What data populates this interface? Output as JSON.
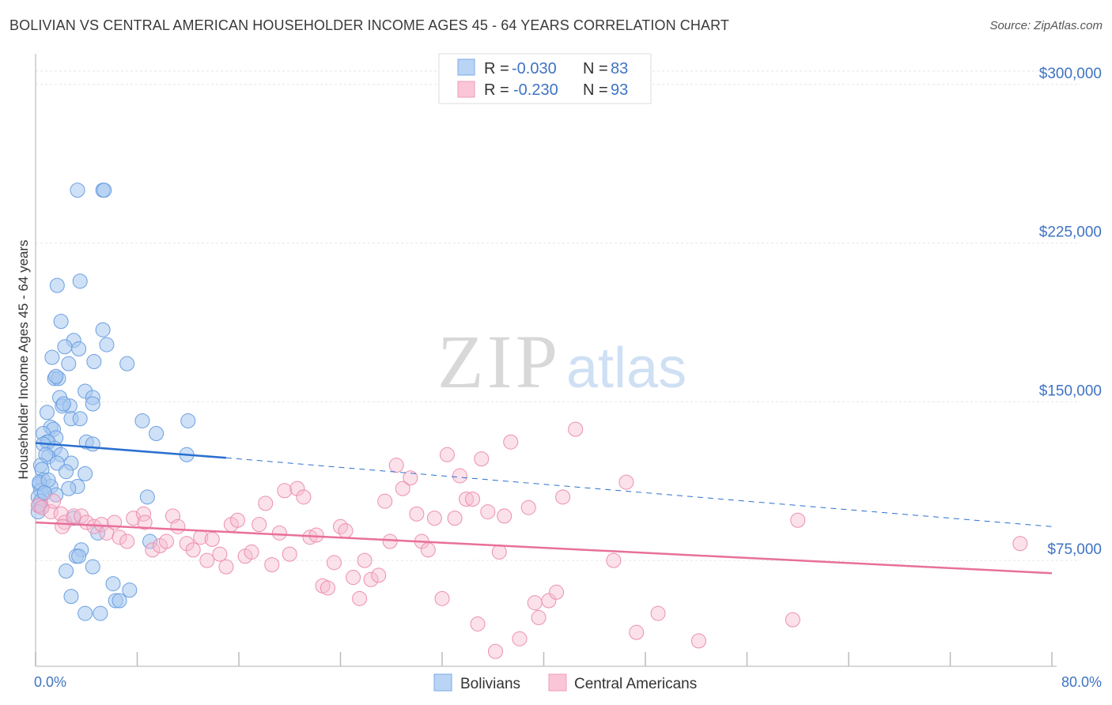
{
  "title": "BOLIVIAN VS CENTRAL AMERICAN HOUSEHOLDER INCOME AGES 45 - 64 YEARS CORRELATION CHART",
  "source": "Source: ZipAtlas.com",
  "watermark": {
    "zip": "ZIP",
    "atlas": "atlas"
  },
  "legend": {
    "r_label": "R =",
    "n_label": "N =",
    "rows": [
      {
        "r": "-0.030",
        "n": "83"
      },
      {
        "r": "-0.230",
        "n": "93"
      }
    ]
  },
  "bottom_legend": [
    "Bolivians",
    "Central Americans"
  ],
  "chart_data": {
    "type": "scatter",
    "title": "BOLIVIAN VS CENTRAL AMERICAN HOUSEHOLDER INCOME AGES 45 - 64 YEARS CORRELATION CHART",
    "xlabel": "",
    "ylabel": "Householder Income Ages 45 - 64 years",
    "xlim": [
      0,
      80
    ],
    "ylim": [
      25000,
      310000
    ],
    "x_tick_labels": [
      "0.0%",
      "80.0%"
    ],
    "y_ticks": [
      75000,
      150000,
      225000,
      300000
    ],
    "y_tick_labels": [
      "$75,000",
      "$150,000",
      "$225,000",
      "$300,000"
    ],
    "grid": true,
    "colors": {
      "bolivians": "#a8c8f0",
      "bolivians_edge": "#6a9fe0",
      "bolivians_line": "#2a6fd0",
      "central": "#f7bcd0",
      "central_edge": "#ec8fb0",
      "central_line": "#e8709a"
    },
    "series": [
      {
        "name": "Bolivians",
        "trend": {
          "x": [
            0,
            15
          ],
          "y": [
            130500,
            123500
          ],
          "dashed_x": [
            15,
            80
          ],
          "dashed_y": [
            123500,
            91000
          ]
        },
        "points": [
          [
            3.3,
            250000
          ],
          [
            5.3,
            250000
          ],
          [
            5.4,
            250000
          ],
          [
            1.7,
            205000
          ],
          [
            3.5,
            207000
          ],
          [
            2.0,
            188000
          ],
          [
            5.3,
            184000
          ],
          [
            3.0,
            179000
          ],
          [
            2.3,
            176000
          ],
          [
            3.4,
            175000
          ],
          [
            5.6,
            177000
          ],
          [
            1.3,
            171000
          ],
          [
            4.6,
            169000
          ],
          [
            2.6,
            168000
          ],
          [
            7.2,
            168000
          ],
          [
            1.5,
            161000
          ],
          [
            1.8,
            161000
          ],
          [
            3.9,
            155000
          ],
          [
            1.9,
            152000
          ],
          [
            4.5,
            152000
          ],
          [
            4.5,
            149000
          ],
          [
            2.1,
            148000
          ],
          [
            2.7,
            148000
          ],
          [
            0.9,
            145000
          ],
          [
            2.8,
            142000
          ],
          [
            3.5,
            142000
          ],
          [
            8.4,
            141000
          ],
          [
            12.0,
            141000
          ],
          [
            1.2,
            138000
          ],
          [
            1.4,
            137000
          ],
          [
            9.5,
            135000
          ],
          [
            0.6,
            135000
          ],
          [
            1.6,
            133000
          ],
          [
            0.9,
            131000
          ],
          [
            1.0,
            131000
          ],
          [
            0.6,
            130000
          ],
          [
            4.0,
            131000
          ],
          [
            4.5,
            130000
          ],
          [
            1.5,
            128000
          ],
          [
            2.0,
            125000
          ],
          [
            1.0,
            124000
          ],
          [
            0.8,
            125000
          ],
          [
            11.9,
            125000
          ],
          [
            0.4,
            120000
          ],
          [
            2.8,
            121000
          ],
          [
            0.5,
            118000
          ],
          [
            1.7,
            121000
          ],
          [
            2.4,
            117000
          ],
          [
            3.9,
            116000
          ],
          [
            0.6,
            113000
          ],
          [
            0.3,
            111000
          ],
          [
            1.2,
            110000
          ],
          [
            3.3,
            110000
          ],
          [
            2.6,
            109000
          ],
          [
            0.4,
            108000
          ],
          [
            0.7,
            107000
          ],
          [
            1.6,
            106000
          ],
          [
            0.2,
            105000
          ],
          [
            0.4,
            103000
          ],
          [
            8.8,
            105000
          ],
          [
            0.3,
            101000
          ],
          [
            0.5,
            100000
          ],
          [
            0.2,
            98000
          ],
          [
            3.0,
            95000
          ],
          [
            4.9,
            88000
          ],
          [
            9.0,
            84000
          ],
          [
            3.6,
            80000
          ],
          [
            3.2,
            77000
          ],
          [
            3.4,
            77000
          ],
          [
            4.5,
            72000
          ],
          [
            2.4,
            70000
          ],
          [
            6.1,
            64000
          ],
          [
            7.4,
            61000
          ],
          [
            2.8,
            58000
          ],
          [
            6.3,
            56000
          ],
          [
            6.6,
            56000
          ],
          [
            3.9,
            50000
          ],
          [
            5.1,
            50000
          ],
          [
            0.3,
            112000
          ],
          [
            1.0,
            113000
          ],
          [
            2.2,
            149000
          ],
          [
            1.6,
            162000
          ],
          [
            0.7,
            107000
          ]
        ]
      },
      {
        "name": "Central Americans",
        "trend": {
          "x": [
            0,
            80
          ],
          "y": [
            93000,
            69000
          ]
        },
        "points": [
          [
            0.2,
            101000
          ],
          [
            0.5,
            100000
          ],
          [
            1.2,
            98000
          ],
          [
            1.4,
            103000
          ],
          [
            2.0,
            97000
          ],
          [
            2.3,
            93000
          ],
          [
            2.1,
            91000
          ],
          [
            3.0,
            96000
          ],
          [
            3.6,
            96000
          ],
          [
            4.0,
            93000
          ],
          [
            4.6,
            91000
          ],
          [
            5.2,
            92000
          ],
          [
            5.6,
            88000
          ],
          [
            6.2,
            93000
          ],
          [
            6.6,
            86000
          ],
          [
            7.2,
            84000
          ],
          [
            7.7,
            95000
          ],
          [
            8.5,
            97000
          ],
          [
            8.6,
            93000
          ],
          [
            9.2,
            80000
          ],
          [
            9.8,
            82000
          ],
          [
            10.3,
            84000
          ],
          [
            10.8,
            96000
          ],
          [
            11.2,
            91000
          ],
          [
            11.9,
            83000
          ],
          [
            12.4,
            80000
          ],
          [
            13.0,
            86000
          ],
          [
            13.5,
            75000
          ],
          [
            13.9,
            85000
          ],
          [
            14.5,
            78000
          ],
          [
            15.0,
            72000
          ],
          [
            15.4,
            92000
          ],
          [
            15.9,
            94000
          ],
          [
            16.5,
            77000
          ],
          [
            17.0,
            79000
          ],
          [
            17.6,
            92000
          ],
          [
            18.1,
            102000
          ],
          [
            18.6,
            73000
          ],
          [
            19.2,
            88000
          ],
          [
            19.6,
            108000
          ],
          [
            20.0,
            78000
          ],
          [
            20.6,
            109000
          ],
          [
            21.1,
            105000
          ],
          [
            21.6,
            86000
          ],
          [
            22.1,
            87000
          ],
          [
            22.6,
            63000
          ],
          [
            23.0,
            62000
          ],
          [
            23.5,
            74000
          ],
          [
            24.0,
            91000
          ],
          [
            24.4,
            89000
          ],
          [
            25.0,
            67000
          ],
          [
            25.5,
            57000
          ],
          [
            25.9,
            75000
          ],
          [
            26.4,
            66000
          ],
          [
            27.0,
            68000
          ],
          [
            27.5,
            103000
          ],
          [
            27.9,
            84000
          ],
          [
            28.4,
            120000
          ],
          [
            28.9,
            109000
          ],
          [
            29.5,
            114000
          ],
          [
            30.0,
            97000
          ],
          [
            30.4,
            84000
          ],
          [
            30.9,
            80000
          ],
          [
            31.4,
            95000
          ],
          [
            32.0,
            57000
          ],
          [
            32.4,
            125000
          ],
          [
            33.0,
            95000
          ],
          [
            33.4,
            115000
          ],
          [
            33.9,
            104000
          ],
          [
            34.4,
            104000
          ],
          [
            34.8,
            45000
          ],
          [
            35.1,
            123000
          ],
          [
            35.6,
            98000
          ],
          [
            36.2,
            32000
          ],
          [
            36.5,
            79000
          ],
          [
            36.9,
            96000
          ],
          [
            37.4,
            131000
          ],
          [
            38.1,
            38000
          ],
          [
            38.8,
            100000
          ],
          [
            39.3,
            55000
          ],
          [
            39.6,
            48000
          ],
          [
            40.4,
            56000
          ],
          [
            41.0,
            60000
          ],
          [
            41.5,
            105000
          ],
          [
            42.5,
            137000
          ],
          [
            45.5,
            75000
          ],
          [
            46.5,
            112000
          ],
          [
            47.3,
            41000
          ],
          [
            49.0,
            50000
          ],
          [
            52.2,
            37000
          ],
          [
            59.6,
            47000
          ],
          [
            60.0,
            94000
          ],
          [
            77.5,
            83000
          ]
        ]
      }
    ]
  }
}
